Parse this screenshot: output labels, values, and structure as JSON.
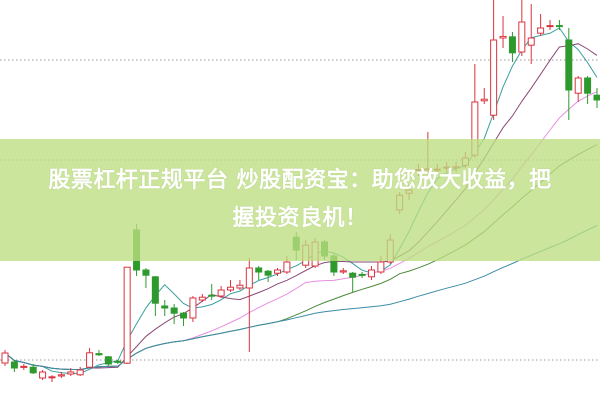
{
  "chart_data": {
    "type": "candlestick",
    "title": "",
    "xlabel": "",
    "ylabel": "",
    "ylim": [
      0,
      100
    ],
    "grid": {
      "style": "dotted",
      "levels": [
        85,
        60,
        10
      ]
    },
    "colors": {
      "up": "#d9333f",
      "down": "#2e9a2e",
      "ma5": "#3a9ea0",
      "ma10": "#8a4a78",
      "ma20": "#e98fe2",
      "ma30": "#4a8a3a",
      "ma60": "#3b8ca8"
    },
    "moving_averages": [
      5,
      10,
      20,
      30,
      60
    ],
    "candles": [
      [
        9.25,
        11.75,
        12.5,
        8.5
      ],
      [
        9.5,
        8,
        10,
        7
      ],
      [
        8.2,
        8.4,
        9,
        7.5
      ],
      [
        8.2,
        6.8,
        9,
        6.5
      ],
      [
        5.5,
        7,
        7.5,
        5
      ],
      [
        5.6,
        5.8,
        6.2,
        4.5
      ],
      [
        6,
        6.3,
        7,
        5.5
      ],
      [
        6.5,
        7,
        8,
        6
      ],
      [
        6.3,
        7.5,
        8.3,
        6
      ],
      [
        8.2,
        11.8,
        13,
        8
      ],
      [
        11.6,
        11.3,
        12.5,
        11
      ],
      [
        10.8,
        9,
        11,
        8.5
      ],
      [
        9.7,
        9.4,
        10,
        9
      ],
      [
        9.2,
        33.2,
        33.2,
        9
      ],
      [
        42.5,
        32.5,
        44,
        31
      ],
      [
        32.5,
        31.2,
        33,
        28
      ],
      [
        30.8,
        24.2,
        31,
        21
      ],
      [
        23.5,
        23,
        25,
        21
      ],
      [
        23,
        21.7,
        24,
        19
      ],
      [
        21.7,
        20.5,
        22,
        18.5
      ],
      [
        20.5,
        25.5,
        26,
        19.5
      ],
      [
        25,
        25.7,
        26.5,
        24.5
      ],
      [
        26.2,
        26,
        29,
        25
      ],
      [
        26,
        27.5,
        28.5,
        25.5
      ],
      [
        27.5,
        28.2,
        30,
        27
      ],
      [
        28,
        28.7,
        30,
        27.5
      ],
      [
        28,
        33,
        35.5,
        12
      ],
      [
        33,
        32,
        33.5,
        30
      ],
      [
        32.2,
        31.2,
        32.5,
        29.5
      ],
      [
        31.7,
        32.5,
        33,
        31
      ],
      [
        32,
        34.5,
        36,
        31.5
      ],
      [
        40.7,
        37.5,
        42,
        35
      ],
      [
        33.7,
        38.7,
        40,
        33
      ],
      [
        33.5,
        39.5,
        40.5,
        33
      ],
      [
        39.5,
        36,
        40,
        35
      ],
      [
        36,
        32,
        36.5,
        31
      ],
      [
        32,
        32.3,
        33,
        31.5
      ],
      [
        31.7,
        30.7,
        32,
        27
      ],
      [
        31.4,
        31.2,
        32,
        30.5
      ],
      [
        30.8,
        32.5,
        33.5,
        30
      ],
      [
        32,
        34.5,
        36,
        31.5
      ],
      [
        34.5,
        40,
        41.5,
        34
      ],
      [
        47.5,
        51.2,
        52,
        46.5
      ],
      [
        51.7,
        52.5,
        54,
        50
      ],
      [
        57.4,
        57.6,
        59,
        56
      ],
      [
        57.5,
        57.8,
        67,
        56
      ],
      [
        57.5,
        57.7,
        59,
        56.5
      ],
      [
        58,
        58.2,
        59.5,
        57
      ],
      [
        58,
        58.3,
        59.5,
        57
      ],
      [
        58.7,
        60.5,
        62,
        58
      ],
      [
        61.2,
        74.5,
        84,
        60.5
      ],
      [
        74.8,
        75.2,
        78,
        74
      ],
      [
        71.2,
        90,
        100,
        70
      ],
      [
        90.5,
        90.9,
        96,
        88
      ],
      [
        90.8,
        86.8,
        92,
        84.5
      ],
      [
        87,
        94.5,
        100,
        86
      ],
      [
        88.7,
        90.5,
        99,
        84
      ],
      [
        91.7,
        93,
        96.5,
        91
      ],
      [
        93.4,
        93.6,
        95,
        92.5
      ],
      [
        93.6,
        93.4,
        95,
        92.5
      ],
      [
        90,
        77.5,
        93,
        70
      ],
      [
        76.7,
        80.5,
        81,
        74.5
      ],
      [
        80.5,
        76.7,
        81,
        74
      ],
      [
        76.2,
        75,
        78,
        73
      ]
    ]
  },
  "banner": {
    "line1": "股票杠杆正规平台 炒股配资宝：助您放大收益，把",
    "line2": "握投资良机！"
  }
}
